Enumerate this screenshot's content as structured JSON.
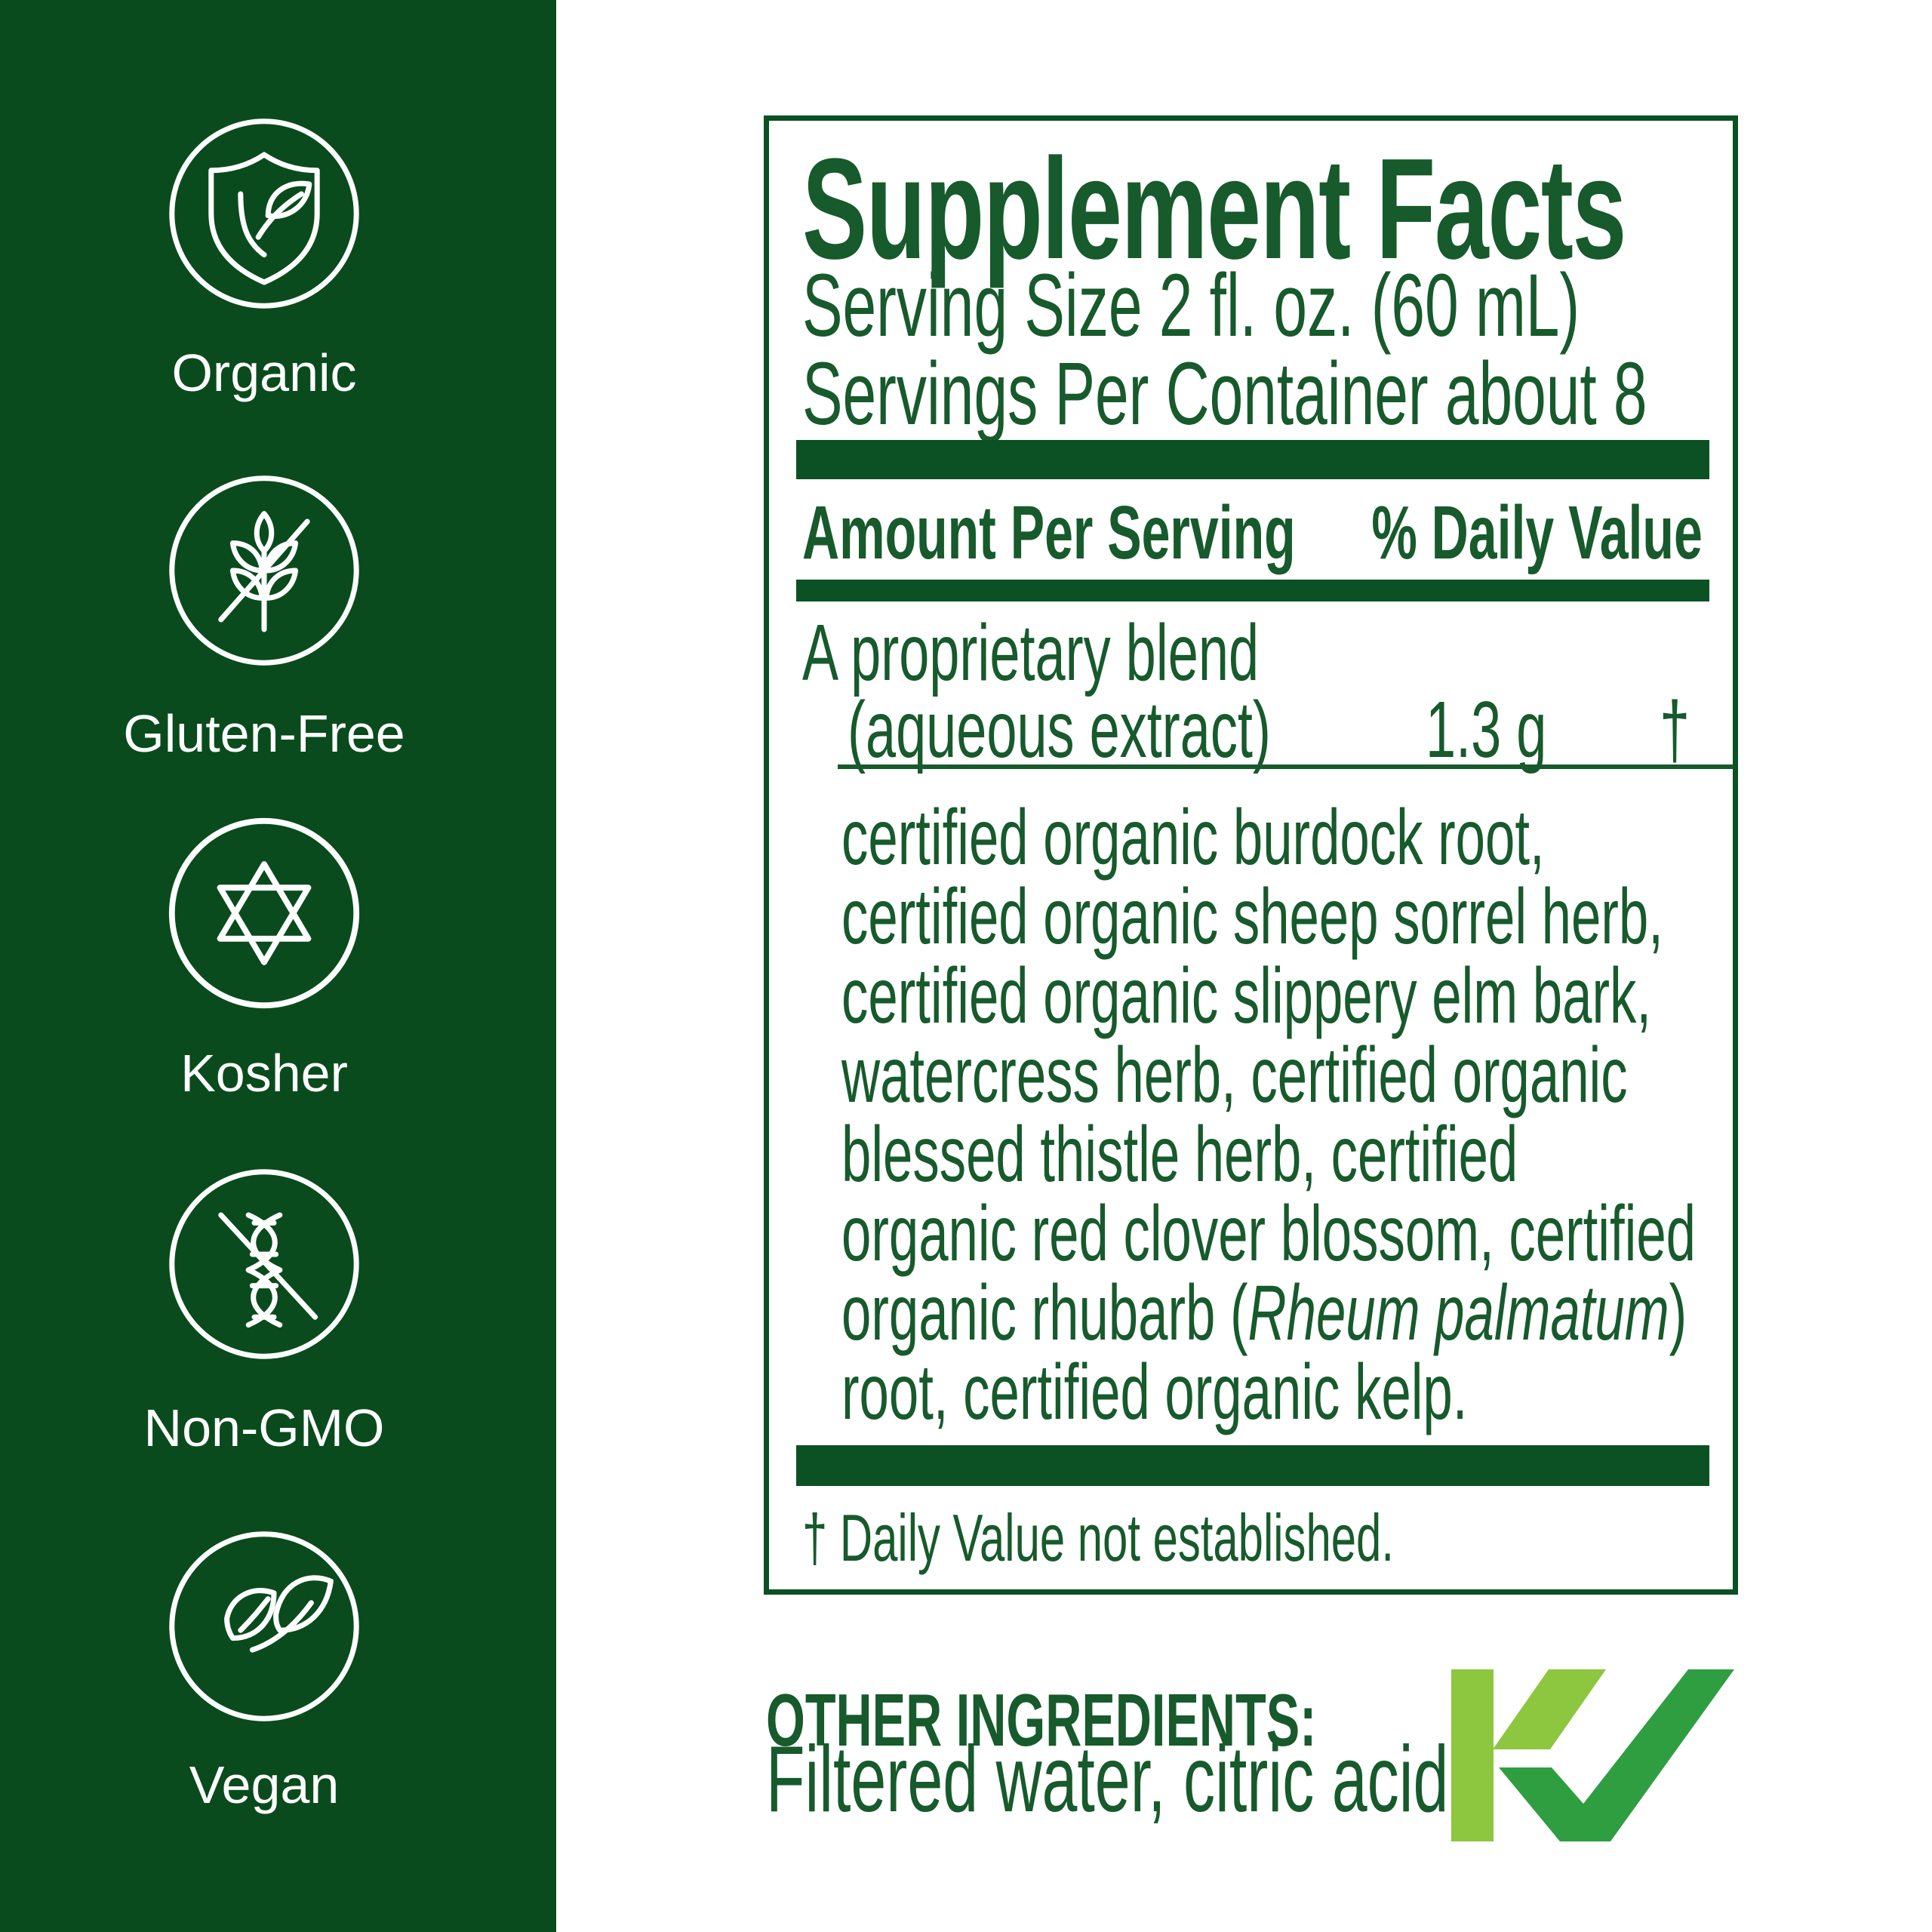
{
  "colors": {
    "sidebar_green": "#0a4b1d",
    "label_text_green": "#175a2c",
    "rule_green": "#0c5123",
    "logo_light_green": "#8dc63f",
    "logo_dark_green": "#2f9e41",
    "icon_stroke": "#ffffff",
    "background": "#ffffff"
  },
  "sidebar": {
    "badges": [
      {
        "label": "Organic",
        "icon": "shield-leaf-icon"
      },
      {
        "label": "Gluten-Free",
        "icon": "wheat-slash-icon"
      },
      {
        "label": "Kosher",
        "icon": "star-of-david-icon"
      },
      {
        "label": "Non-GMO",
        "icon": "dna-slash-icon"
      },
      {
        "label": "Vegan",
        "icon": "leaves-icon"
      }
    ]
  },
  "supplement_facts": {
    "title": "Supplement Facts",
    "serving_size": "Serving Size 2 fl. oz. (60 mL)",
    "servings_per_container": "Servings Per Container about 8",
    "column_headers": {
      "amount": "Amount Per Serving",
      "daily_value": "% Daily Value"
    },
    "blend": {
      "name_line1": "A proprietary blend",
      "name_line2": "(aqueous extract)",
      "amount": "1.3 g",
      "daily_value_symbol": "†"
    },
    "blend_ingredients_lines": [
      [
        {
          "text": "certified organic burdock root,",
          "italic": false
        }
      ],
      [
        {
          "text": "certified organic sheep sorrel herb,",
          "italic": false
        }
      ],
      [
        {
          "text": "certified organic slippery elm bark,",
          "italic": false
        }
      ],
      [
        {
          "text": "watercress herb, certified organic",
          "italic": false
        }
      ],
      [
        {
          "text": "blessed thistle herb, certified",
          "italic": false
        }
      ],
      [
        {
          "text": "organic red clover blossom, certified",
          "italic": false
        }
      ],
      [
        {
          "text": "organic rhubarb (",
          "italic": false
        },
        {
          "text": "Rheum palmatum",
          "italic": true
        },
        {
          "text": ")",
          "italic": false
        }
      ],
      [
        {
          "text": "root, certified organic kelp.",
          "italic": false
        }
      ]
    ],
    "footnote": "† Daily Value not established."
  },
  "other_ingredients": {
    "heading": "OTHER INGREDIENTS:",
    "text": "Filtered water, citric acid."
  },
  "logo": {
    "name": "KV certification check logo"
  }
}
